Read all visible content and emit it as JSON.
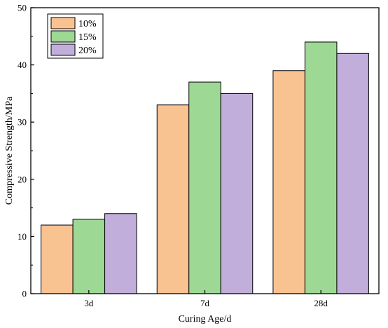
{
  "chart_data": {
    "type": "bar",
    "title": "",
    "xlabel": "Curing Age/d",
    "ylabel": "Compressive Strength/MPa",
    "categories": [
      "3d",
      "7d",
      "28d"
    ],
    "series": [
      {
        "name": "10%",
        "values": [
          12,
          33,
          39
        ],
        "color": "#F9C291"
      },
      {
        "name": "15%",
        "values": [
          13,
          37,
          44
        ],
        "color": "#9DD894"
      },
      {
        "name": "20%",
        "values": [
          14,
          35,
          42
        ],
        "color": "#C1AEDB"
      }
    ],
    "ylim": [
      0,
      50
    ],
    "yticks": [
      0,
      10,
      20,
      30,
      40,
      50
    ],
    "grid": false,
    "legend_position": "top-left"
  }
}
